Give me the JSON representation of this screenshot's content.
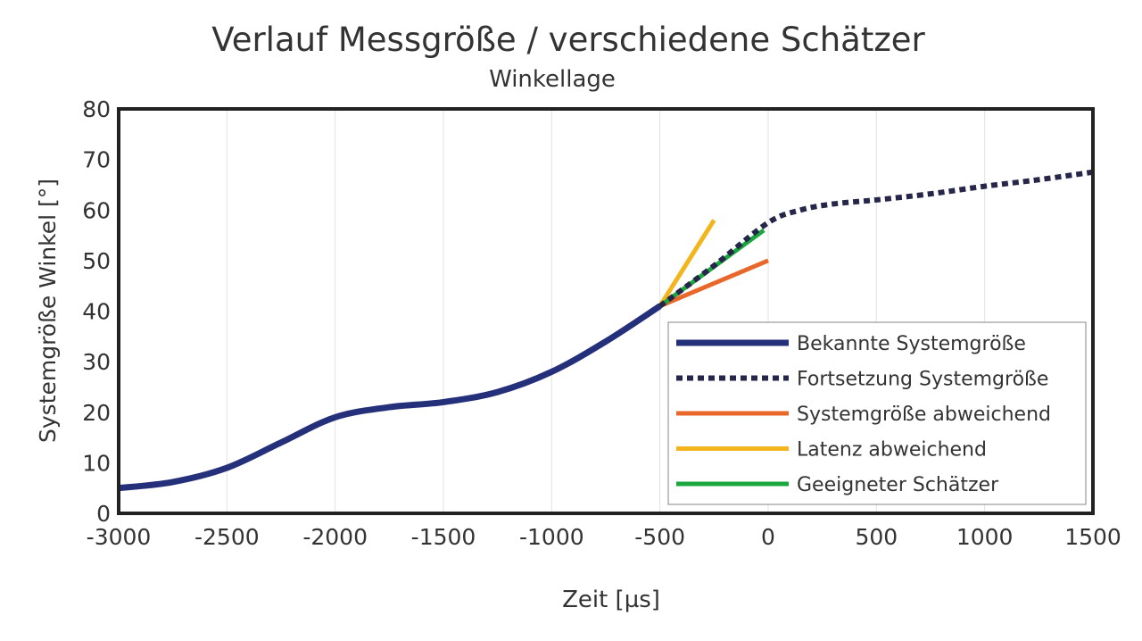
{
  "chart_data": {
    "type": "line",
    "title": "Verlauf Messgröße / verschiedene Schätzer",
    "subtitle": "Winkellage",
    "xlabel": "Zeit [µs]",
    "ylabel": "Systemgröße Winkel [°]",
    "xlim": [
      -3000,
      1500
    ],
    "ylim": [
      0,
      80
    ],
    "xticks": [
      -3000,
      -2500,
      -2000,
      -1500,
      -1000,
      -500,
      0,
      500,
      1000,
      1500
    ],
    "yticks": [
      0,
      10,
      20,
      30,
      40,
      50,
      60,
      70,
      80
    ],
    "grid": "vertical",
    "legend_position": "bottom-right",
    "series": [
      {
        "name": "Bekannte Systemgröße",
        "color": "#25307a",
        "style": "solid-thick",
        "x": [
          -3000,
          -2750,
          -2500,
          -2250,
          -2000,
          -1750,
          -1500,
          -1250,
          -1000,
          -750,
          -500
        ],
        "y": [
          5,
          6.2,
          9,
          14,
          19,
          21,
          22,
          24,
          28,
          34,
          41
        ]
      },
      {
        "name": "Fortsetzung Systemgröße",
        "color": "#26264a",
        "style": "dotted",
        "x": [
          -500,
          -250,
          0,
          150,
          300,
          500,
          750,
          1000,
          1250,
          1500
        ],
        "y": [
          41,
          49,
          57.5,
          60,
          61.2,
          62,
          63.2,
          64.7,
          66,
          67.5
        ]
      },
      {
        "name": "Systemgröße abweichend",
        "color": "#e8672a",
        "style": "solid",
        "x": [
          -500,
          0
        ],
        "y": [
          41,
          50
        ]
      },
      {
        "name": "Latenz abweichend",
        "color": "#f3b51d",
        "style": "solid",
        "x": [
          -500,
          -250
        ],
        "y": [
          41,
          58
        ]
      },
      {
        "name": "Geeigneter Schätzer",
        "color": "#1aa83e",
        "style": "solid",
        "x": [
          -500,
          -20
        ],
        "y": [
          41,
          56
        ]
      }
    ]
  }
}
